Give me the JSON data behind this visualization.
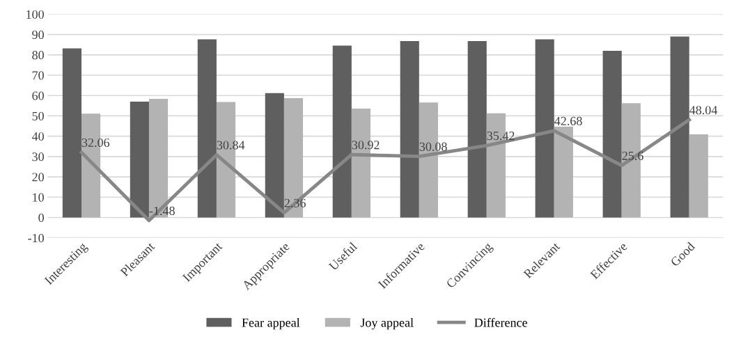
{
  "chart_data": {
    "type": "bar",
    "categories": [
      "Interesting",
      "Pleasant",
      "Important",
      "Appropriate",
      "Useful",
      "Informative",
      "Convincing",
      "Relevant",
      "Effective",
      "Good"
    ],
    "series": [
      {
        "name": "Fear appeal",
        "color": "#5f5f5f",
        "values": [
          83.2,
          57.0,
          87.6,
          61.2,
          84.6,
          86.8,
          86.8,
          87.6,
          82.0,
          89.0
        ]
      },
      {
        "name": "Joy appeal",
        "color": "#b3b3b3",
        "values": [
          51.1,
          58.4,
          56.8,
          58.7,
          53.6,
          56.6,
          51.3,
          44.7,
          56.2,
          40.9
        ]
      },
      {
        "name": "Difference",
        "type": "line",
        "color": "#878787",
        "values": [
          32.06,
          -1.48,
          30.84,
          2.36,
          30.92,
          30.08,
          35.42,
          42.68,
          25.6,
          48.04
        ],
        "value_labels": [
          "32.06",
          "-1.48",
          "30.84",
          "2.36",
          "30.92",
          "30.08",
          "35.42",
          "42.68",
          "25.6",
          "48.04"
        ]
      }
    ],
    "ylim": [
      -10,
      100
    ],
    "yticks": [
      -10,
      0,
      10,
      20,
      30,
      40,
      50,
      60,
      70,
      80,
      90,
      100
    ],
    "grid": "y",
    "legend": "bottom",
    "marker": "none"
  }
}
